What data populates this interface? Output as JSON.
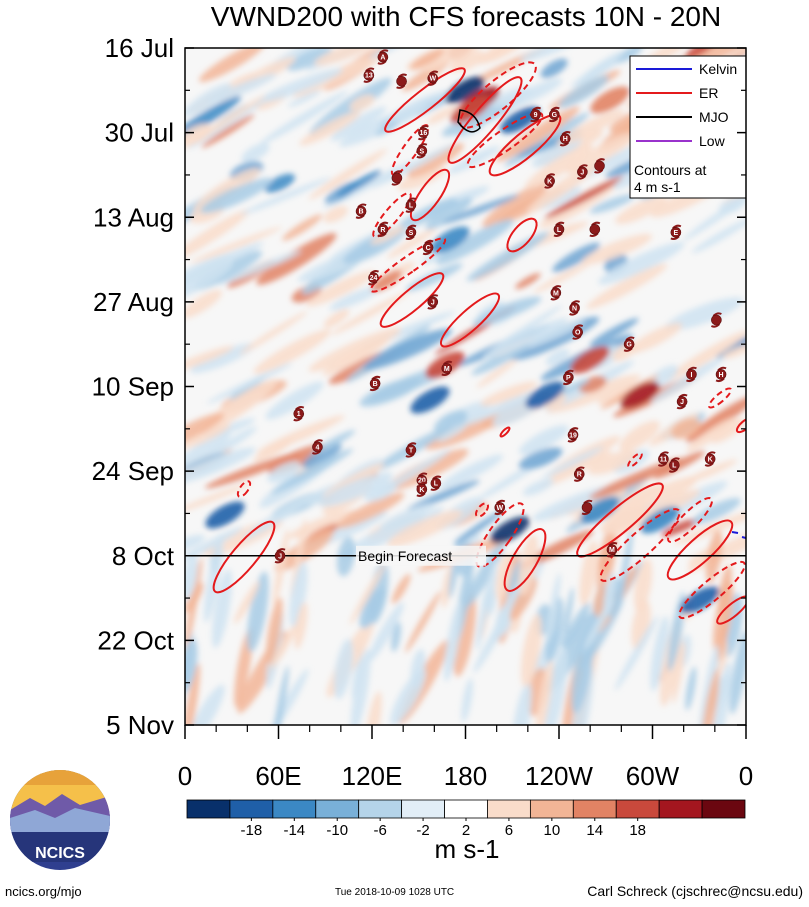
{
  "title": "VWND200 with CFS forecasts  10N - 20N",
  "chart_data": {
    "type": "heatmap",
    "title": "VWND200 with CFS forecasts  10N - 20N",
    "variable": "VWND200",
    "latitude_band": "10N - 20N",
    "y_tick_labels": [
      "16 Jul",
      "30 Jul",
      "13 Aug",
      "27 Aug",
      "10 Sep",
      "24 Sep",
      "8 Oct",
      "22 Oct",
      "5 Nov"
    ],
    "x_tick_labels": [
      "0",
      "60E",
      "120E",
      "180",
      "120W",
      "60W",
      "0"
    ],
    "x_ticks_deg": [
      0,
      60,
      120,
      180,
      240,
      300,
      360
    ],
    "xlim_deg": [
      0,
      360
    ],
    "y_range_days": [
      0,
      112
    ],
    "y_ticks_days": [
      0,
      14,
      28,
      42,
      56,
      70,
      84,
      98,
      112
    ],
    "forecast_line": {
      "day": 84,
      "label": "Begin Forecast"
    },
    "colorbar": {
      "unit": "m s-1",
      "tick_labels": [
        "-18",
        "-14",
        "-10",
        "-6",
        "-2",
        "2",
        "6",
        "10",
        "14",
        "18"
      ],
      "levels": [
        -18,
        -14,
        -10,
        -6,
        -2,
        2,
        6,
        10,
        14,
        18
      ],
      "colors": [
        "#08306b",
        "#1f5fa8",
        "#3b88c4",
        "#79b0d8",
        "#b5d4e9",
        "#e2eef7",
        "#ffffff",
        "#f9dcca",
        "#f2b596",
        "#e28364",
        "#c9493c",
        "#a4161f",
        "#6b0710"
      ]
    },
    "legend": {
      "items": [
        {
          "label": "Kelvin",
          "color": "#1a1ad8"
        },
        {
          "label": "ER",
          "color": "#e41a1c"
        },
        {
          "label": "MJO",
          "color": "#000000"
        },
        {
          "label": "Low",
          "color": "#9932cc"
        }
      ],
      "note_line1": "Contours at",
      "note_line2": "4 m s-1",
      "placement": "top-right"
    },
    "storms": [
      {
        "label": "A",
        "lon": 127,
        "day": 1.5
      },
      {
        "label": "13",
        "lon": 118,
        "day": 4.5
      },
      {
        "label": "W",
        "lon": 159,
        "day": 5
      },
      {
        "label": "",
        "lon": 139,
        "day": 5.5
      },
      {
        "label": "16",
        "lon": 153,
        "day": 14
      },
      {
        "label": "9",
        "lon": 225,
        "day": 11
      },
      {
        "label": "G",
        "lon": 237,
        "day": 11
      },
      {
        "label": "S",
        "lon": 152,
        "day": 17
      },
      {
        "label": "H",
        "lon": 244,
        "day": 15
      },
      {
        "label": "K",
        "lon": 234,
        "day": 22
      },
      {
        "label": "",
        "lon": 136,
        "day": 21.5
      },
      {
        "label": "J",
        "lon": 255,
        "day": 20.5
      },
      {
        "label": "",
        "lon": 266,
        "day": 19.5
      },
      {
        "label": "B",
        "lon": 113,
        "day": 27
      },
      {
        "label": "L",
        "lon": 145,
        "day": 26
      },
      {
        "label": "R",
        "lon": 127,
        "day": 30
      },
      {
        "label": "S",
        "lon": 145,
        "day": 30.5
      },
      {
        "label": "L",
        "lon": 240,
        "day": 30
      },
      {
        "label": "E",
        "lon": 315,
        "day": 30.5
      },
      {
        "label": "",
        "lon": 263,
        "day": 30
      },
      {
        "label": "C",
        "lon": 156,
        "day": 33
      },
      {
        "label": "24",
        "lon": 121,
        "day": 38
      },
      {
        "label": "M",
        "lon": 238,
        "day": 40.5
      },
      {
        "label": "J",
        "lon": 159,
        "day": 42
      },
      {
        "label": "N",
        "lon": 250,
        "day": 43
      },
      {
        "label": "O",
        "lon": 252,
        "day": 47
      },
      {
        "label": "G",
        "lon": 285,
        "day": 49
      },
      {
        "label": "",
        "lon": 341,
        "day": 45
      },
      {
        "label": "M",
        "lon": 168,
        "day": 53
      },
      {
        "label": "P",
        "lon": 246,
        "day": 54.5
      },
      {
        "label": "I",
        "lon": 325,
        "day": 54
      },
      {
        "label": "H",
        "lon": 344,
        "day": 54
      },
      {
        "label": "B",
        "lon": 122,
        "day": 55.5
      },
      {
        "label": "J",
        "lon": 319,
        "day": 58.5
      },
      {
        "label": "1",
        "lon": 73,
        "day": 60.5
      },
      {
        "label": "19",
        "lon": 249,
        "day": 64
      },
      {
        "label": "4",
        "lon": 85,
        "day": 66
      },
      {
        "label": "T",
        "lon": 145,
        "day": 66.5
      },
      {
        "label": "11",
        "lon": 307,
        "day": 68
      },
      {
        "label": "K",
        "lon": 337,
        "day": 68
      },
      {
        "label": "L",
        "lon": 314,
        "day": 69
      },
      {
        "label": "R",
        "lon": 253,
        "day": 70.5
      },
      {
        "label": "20",
        "lon": 152,
        "day": 71.5
      },
      {
        "label": "L",
        "lon": 161,
        "day": 72
      },
      {
        "label": "K",
        "lon": 152,
        "day": 73
      },
      {
        "label": "W",
        "lon": 202,
        "day": 76
      },
      {
        "label": "",
        "lon": 258,
        "day": 76
      },
      {
        "label": "M",
        "lon": 274,
        "day": 83
      },
      {
        "label": "J",
        "lon": 61,
        "day": 84
      }
    ]
  },
  "footer": {
    "left": "ncics.org/mjo",
    "middle": "Tue 2018-10-09 1028 UTC",
    "right": "Carl Schreck (cjschrec@ncsu.edu)"
  },
  "logo": {
    "text": "NCICS"
  }
}
